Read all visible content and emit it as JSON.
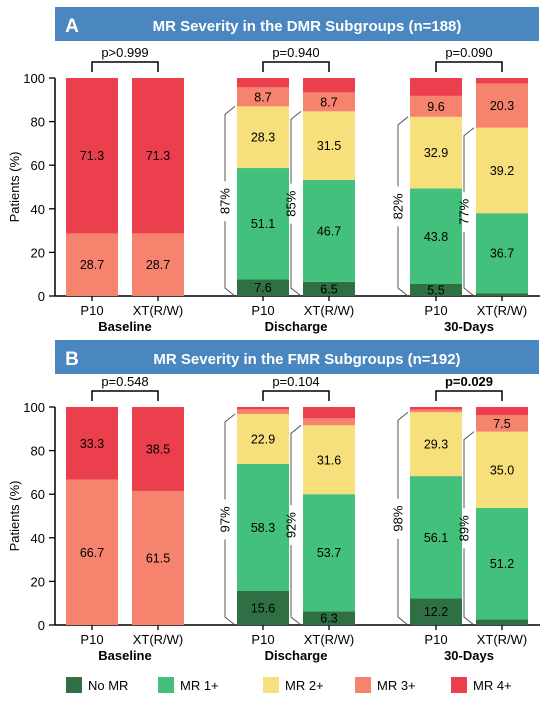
{
  "colors": {
    "header": "#4a86bf",
    "no_mr": "#2e7043",
    "mr1": "#43c07b",
    "mr2": "#f7df7b",
    "mr3": "#f6836e",
    "mr4": "#eb3f4d"
  },
  "legend": {
    "items": [
      {
        "label": "No MR",
        "color_key": "no_mr"
      },
      {
        "label": "MR 1+",
        "color_key": "mr1"
      },
      {
        "label": "MR 2+",
        "color_key": "mr2"
      },
      {
        "label": "MR 3+",
        "color_key": "mr3"
      },
      {
        "label": "MR 4+",
        "color_key": "mr4"
      }
    ]
  },
  "chart_data": [
    {
      "type": "bar",
      "stacked": true,
      "panel_letter": "A",
      "title": "MR Severity in the DMR Subgroups (n=188)",
      "ylabel": "Patients (%)",
      "ylim": [
        0,
        100
      ],
      "yticks": [
        0,
        20,
        40,
        60,
        80,
        100
      ],
      "series_order": [
        "No MR",
        "MR 1+",
        "MR 2+",
        "MR 3+",
        "MR 4+"
      ],
      "groups": [
        {
          "name": "Baseline",
          "p_value": "p>0.999",
          "p_bold": false,
          "bars": [
            {
              "label": "P10",
              "values": [
                0,
                0,
                0,
                28.7,
                71.3
              ],
              "labels": [
                "",
                "",
                "",
                "28.7",
                "71.3"
              ],
              "bracket": ""
            },
            {
              "label": "XT(R/W)",
              "values": [
                0,
                0,
                0,
                28.7,
                71.3
              ],
              "labels": [
                "",
                "",
                "",
                "28.7",
                "71.3"
              ],
              "bracket": ""
            }
          ]
        },
        {
          "name": "Discharge",
          "p_value": "p=0.940",
          "p_bold": false,
          "bars": [
            {
              "label": "P10",
              "values": [
                7.6,
                51.1,
                28.3,
                8.7,
                4.3
              ],
              "labels": [
                "7.6",
                "51.1",
                "28.3",
                "8.7",
                ""
              ],
              "bracket": "87%"
            },
            {
              "label": "XT(R/W)",
              "values": [
                6.5,
                46.7,
                31.5,
                8.7,
                6.6
              ],
              "labels": [
                "6.5",
                "46.7",
                "31.5",
                "8.7",
                ""
              ],
              "bracket": "85%"
            }
          ]
        },
        {
          "name": "30-Days",
          "p_value": "p=0.090",
          "p_bold": false,
          "bars": [
            {
              "label": "P10",
              "values": [
                5.5,
                43.8,
                32.9,
                9.6,
                8.2
              ],
              "labels": [
                "5.5",
                "43.8",
                "32.9",
                "9.6",
                ""
              ],
              "bracket": "82%"
            },
            {
              "label": "XT(R/W)",
              "values": [
                1.3,
                36.7,
                39.2,
                20.3,
                2.5
              ],
              "labels": [
                "",
                "36.7",
                "39.2",
                "20.3",
                ""
              ],
              "bracket": "77%"
            }
          ]
        }
      ]
    },
    {
      "type": "bar",
      "stacked": true,
      "panel_letter": "B",
      "title": "MR Severity in the FMR Subgroups (n=192)",
      "ylabel": "Patients (%)",
      "ylim": [
        0,
        100
      ],
      "yticks": [
        0,
        20,
        40,
        60,
        80,
        100
      ],
      "series_order": [
        "No MR",
        "MR 1+",
        "MR 2+",
        "MR 3+",
        "MR 4+"
      ],
      "groups": [
        {
          "name": "Baseline",
          "p_value": "p=0.548",
          "p_bold": false,
          "bars": [
            {
              "label": "P10",
              "values": [
                0,
                0,
                0,
                66.7,
                33.3
              ],
              "labels": [
                "",
                "",
                "",
                "66.7",
                "33.3"
              ],
              "bracket": ""
            },
            {
              "label": "XT(R/W)",
              "values": [
                0,
                0,
                0,
                61.5,
                38.5
              ],
              "labels": [
                "",
                "",
                "",
                "61.5",
                "38.5"
              ],
              "bracket": ""
            }
          ]
        },
        {
          "name": "Discharge",
          "p_value": "p=0.104",
          "p_bold": false,
          "bars": [
            {
              "label": "P10",
              "values": [
                15.6,
                58.3,
                22.9,
                2.1,
                1.1
              ],
              "labels": [
                "15.6",
                "58.3",
                "22.9",
                "",
                ""
              ],
              "bracket": "97%"
            },
            {
              "label": "XT(R/W)",
              "values": [
                6.3,
                53.7,
                31.6,
                3.2,
                5.2
              ],
              "labels": [
                "6.3",
                "53.7",
                "31.6",
                "",
                ""
              ],
              "bracket": "92%"
            }
          ]
        },
        {
          "name": "30-Days",
          "p_value": "p=0.029",
          "p_bold": true,
          "bars": [
            {
              "label": "P10",
              "values": [
                12.2,
                56.1,
                29.3,
                1.2,
                1.2
              ],
              "labels": [
                "12.2",
                "56.1",
                "29.3",
                "",
                ""
              ],
              "bracket": "98%"
            },
            {
              "label": "XT(R/W)",
              "values": [
                2.5,
                51.2,
                35.0,
                7.5,
                3.8
              ],
              "labels": [
                "",
                "51.2",
                "35.0",
                "7.5",
                ""
              ],
              "bracket": "89%"
            }
          ]
        }
      ]
    }
  ]
}
